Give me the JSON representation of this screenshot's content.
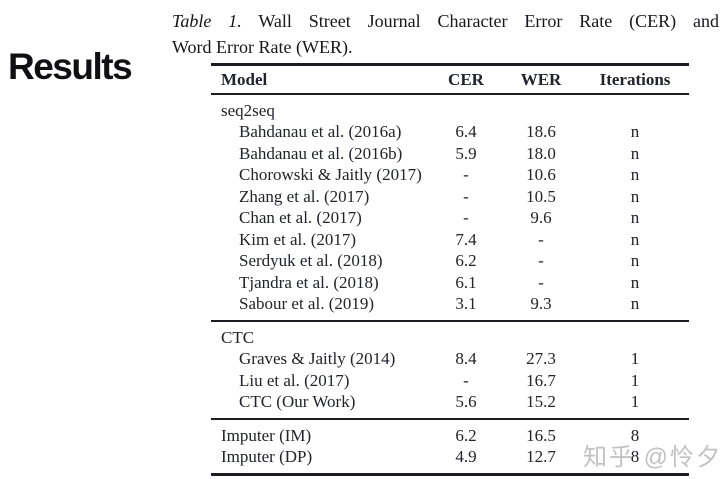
{
  "heading": "Results",
  "caption": {
    "label": "Table 1.",
    "line1": "Wall Street Journal Character Error Rate (CER) and",
    "line2": "Word Error Rate (WER)."
  },
  "table": {
    "headers": [
      "Model",
      "CER",
      "WER",
      "Iterations"
    ],
    "sections": [
      {
        "group": "seq2seq",
        "ruled": true,
        "rows": [
          {
            "model": "Bahdanau et al. (2016a)",
            "cer": "6.4",
            "wer": "18.6",
            "iterations": "n"
          },
          {
            "model": "Bahdanau et al. (2016b)",
            "cer": "5.9",
            "wer": "18.0",
            "iterations": "n"
          },
          {
            "model": "Chorowski & Jaitly (2017)",
            "cer": "-",
            "wer": "10.6",
            "iterations": "n"
          },
          {
            "model": "Zhang et al. (2017)",
            "cer": "-",
            "wer": "10.5",
            "iterations": "n"
          },
          {
            "model": "Chan et al. (2017)",
            "cer": "-",
            "wer": "9.6",
            "iterations": "n"
          },
          {
            "model": "Kim et al. (2017)",
            "cer": "7.4",
            "wer": "-",
            "iterations": "n"
          },
          {
            "model": "Serdyuk et al. (2018)",
            "cer": "6.2",
            "wer": "-",
            "iterations": "n"
          },
          {
            "model": "Tjandra et al. (2018)",
            "cer": "6.1",
            "wer": "-",
            "iterations": "n"
          },
          {
            "model": "Sabour et al. (2019)",
            "cer": "3.1",
            "wer": "9.3",
            "iterations": "n"
          }
        ]
      },
      {
        "group": "CTC",
        "ruled": true,
        "rows": [
          {
            "model": "Graves & Jaitly (2014)",
            "cer": "8.4",
            "wer": "27.3",
            "iterations": "1"
          },
          {
            "model": "Liu et al. (2017)",
            "cer": "-",
            "wer": "16.7",
            "iterations": "1"
          },
          {
            "model": "CTC (Our Work)",
            "cer": "5.6",
            "wer": "15.2",
            "iterations": "1"
          }
        ]
      },
      {
        "group": null,
        "ruled": false,
        "rows": [
          {
            "model": "Imputer (IM)",
            "cer": "6.2",
            "wer": "16.5",
            "iterations": "8"
          },
          {
            "model": "Imputer (DP)",
            "cer": "4.9",
            "wer": "12.7",
            "iterations": "8"
          }
        ]
      }
    ]
  },
  "watermark": "知乎 @怜夕",
  "colors": {
    "background": "#ffffff",
    "text": "#22232b",
    "heading": "#101014",
    "rule": "#1c1c22",
    "watermark": "#bababa"
  },
  "chart_data": {
    "type": "table",
    "title": "Table 1. Wall Street Journal Character Error Rate (CER) and Word Error Rate (WER).",
    "columns": [
      "Model",
      "CER",
      "WER",
      "Iterations"
    ],
    "rows": [
      [
        "seq2seq",
        "",
        "",
        ""
      ],
      [
        "Bahdanau et al. (2016a)",
        "6.4",
        "18.6",
        "n"
      ],
      [
        "Bahdanau et al. (2016b)",
        "5.9",
        "18.0",
        "n"
      ],
      [
        "Chorowski & Jaitly (2017)",
        "-",
        "10.6",
        "n"
      ],
      [
        "Zhang et al. (2017)",
        "-",
        "10.5",
        "n"
      ],
      [
        "Chan et al. (2017)",
        "-",
        "9.6",
        "n"
      ],
      [
        "Kim et al. (2017)",
        "7.4",
        "-",
        "n"
      ],
      [
        "Serdyuk et al. (2018)",
        "6.2",
        "-",
        "n"
      ],
      [
        "Tjandra et al. (2018)",
        "6.1",
        "-",
        "n"
      ],
      [
        "Sabour et al. (2019)",
        "3.1",
        "9.3",
        "n"
      ],
      [
        "CTC",
        "",
        "",
        ""
      ],
      [
        "Graves & Jaitly (2014)",
        "8.4",
        "27.3",
        "1"
      ],
      [
        "Liu et al. (2017)",
        "-",
        "16.7",
        "1"
      ],
      [
        "CTC (Our Work)",
        "5.6",
        "15.2",
        "1"
      ],
      [
        "Imputer (IM)",
        "6.2",
        "16.5",
        "8"
      ],
      [
        "Imputer (DP)",
        "4.9",
        "12.7",
        "8"
      ]
    ]
  }
}
